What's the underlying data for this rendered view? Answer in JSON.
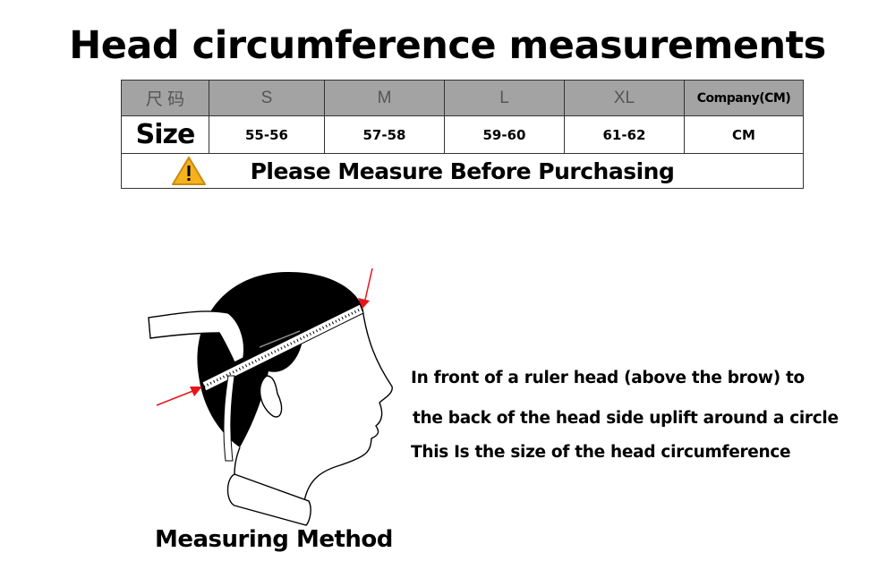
{
  "title": "Head circumference measurements",
  "table": {
    "header": [
      "尺 码",
      "S",
      "M",
      "L",
      "XL",
      "Company(CM)"
    ],
    "row": [
      "Size",
      "55-56",
      "57-58",
      "59-60",
      "61-62",
      "CM"
    ],
    "notice": "Please Measure Before Purchasing",
    "notice_icon": "warning-icon",
    "header_bg": "#a3a3a3"
  },
  "instructions": [
    "In front of a ruler head (above the brow) to",
    "the back of the head side uplift around a circle",
    "This Is the size of the head circumference"
  ],
  "illustration_caption": "Measuring Method",
  "arrow_color": "#e8141b"
}
